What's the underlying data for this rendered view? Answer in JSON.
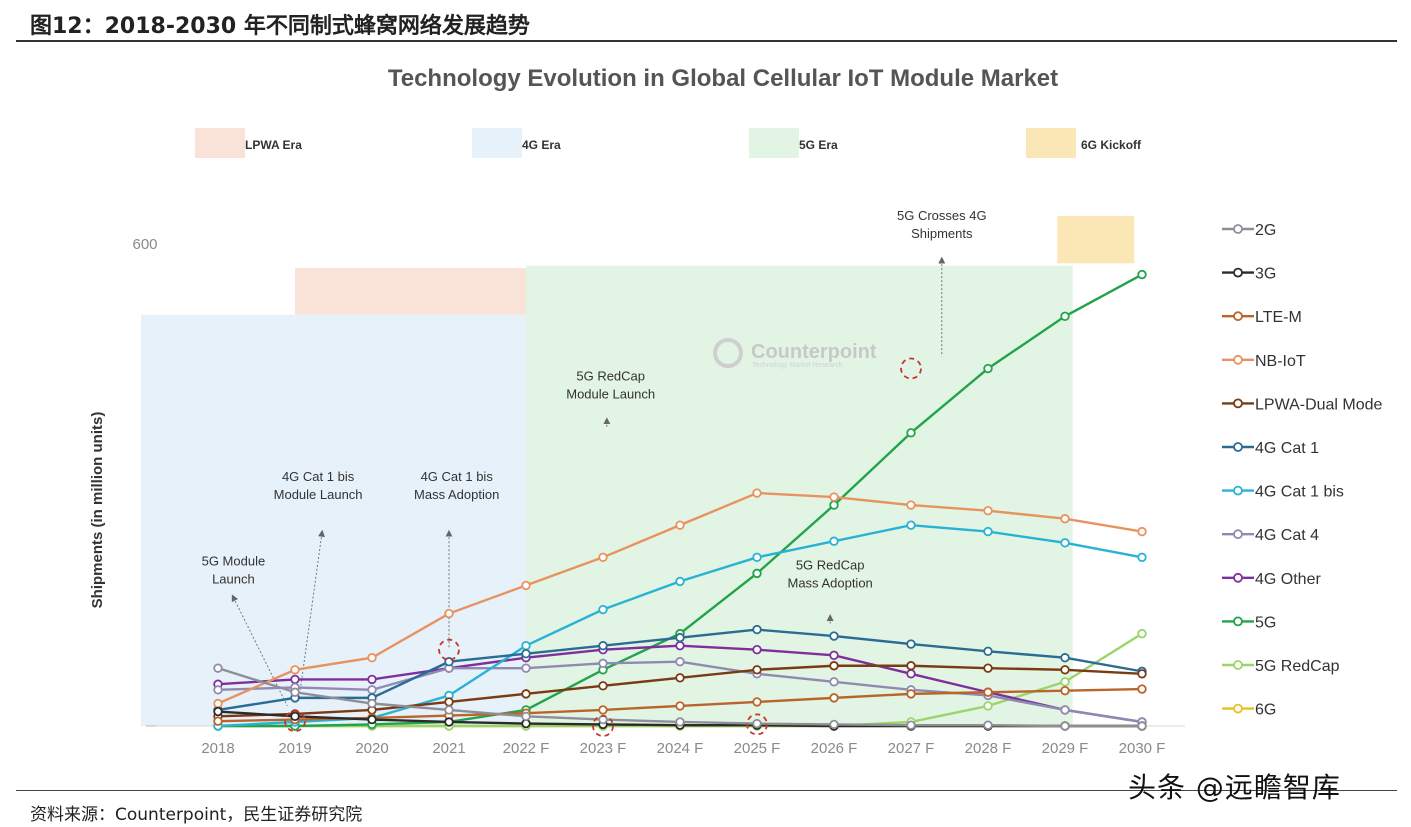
{
  "figure_caption": "图12：2018-2030 年不同制式蜂窝网络发展趋势",
  "source": "资料来源：Counterpoint，民生证券研究院",
  "watermark": "头条 @远瞻智库",
  "logo": {
    "name": "Counterpoint",
    "tagline": "Technology Market Research"
  },
  "chart_data": {
    "type": "line",
    "title": "Technology Evolution in Global Cellular IoT Module Market",
    "ylabel": "Shipments (in million units)",
    "xlabel": "",
    "ylim": [
      0,
      600
    ],
    "yticks": [
      "600"
    ],
    "categories": [
      "2018",
      "2019",
      "2020",
      "2021",
      "2022 F",
      "2023 F",
      "2024 F",
      "2025 F",
      "2026 F",
      "2027 F",
      "2028 F",
      "2029 F",
      "2030 F"
    ],
    "eras": [
      {
        "label": "LPWA Era",
        "color": "#f9e3d9"
      },
      {
        "label": "4G Era",
        "color": "#e6f1fa"
      },
      {
        "label": "5G Era",
        "color": "#e2f5e4"
      },
      {
        "label": "6G Kickoff",
        "color": "#fbe6b6"
      }
    ],
    "era_spans": [
      {
        "label": "LPWA Era",
        "from": 1,
        "to": 7.4,
        "low": 512,
        "high": 570
      },
      {
        "label": "4G Era",
        "from": -1,
        "to": 9.1,
        "low": 0,
        "high": 512
      },
      {
        "label": "5G Era",
        "from": 4,
        "to": 11.1,
        "low": 0,
        "high": 573
      },
      {
        "label": "6G Kickoff",
        "from": 10.9,
        "to": 11.9,
        "low": 576,
        "high": 635
      }
    ],
    "series": [
      {
        "name": "2G",
        "color": "#8e8e99",
        "values": [
          72,
          42,
          28,
          20,
          12,
          8,
          5,
          3,
          2,
          1,
          1,
          0,
          0
        ]
      },
      {
        "name": "3G",
        "color": "#2b2b2b",
        "values": [
          18,
          12,
          8,
          5,
          3,
          2,
          1,
          1,
          0,
          0,
          0,
          0,
          0
        ]
      },
      {
        "name": "LTE-M",
        "color": "#b9652a",
        "values": [
          6,
          8,
          10,
          13,
          16,
          20,
          25,
          30,
          35,
          40,
          42,
          44,
          46
        ]
      },
      {
        "name": "NB-IoT",
        "color": "#e8935f",
        "values": [
          28,
          70,
          85,
          140,
          175,
          210,
          250,
          290,
          285,
          275,
          268,
          258,
          242
        ]
      },
      {
        "name": "LPWA-Dual Mode",
        "color": "#7a3b14",
        "values": [
          12,
          15,
          20,
          30,
          40,
          50,
          60,
          70,
          75,
          75,
          72,
          70,
          65
        ]
      },
      {
        "name": "4G Cat 1",
        "color": "#2a6c93",
        "values": [
          20,
          35,
          35,
          80,
          90,
          100,
          110,
          120,
          112,
          102,
          93,
          85,
          68
        ]
      },
      {
        "name": "4G Cat 1 bis",
        "color": "#2ab2d6",
        "values": [
          0,
          5,
          10,
          38,
          100,
          145,
          180,
          210,
          230,
          250,
          242,
          228,
          210
        ]
      },
      {
        "name": "4G Cat 4",
        "color": "#9089b1",
        "values": [
          45,
          48,
          45,
          72,
          72,
          78,
          80,
          65,
          55,
          45,
          38,
          20,
          5
        ]
      },
      {
        "name": "4G Other",
        "color": "#7f2f9c",
        "values": [
          52,
          58,
          58,
          72,
          85,
          95,
          100,
          95,
          88,
          65,
          42,
          20,
          5
        ]
      },
      {
        "name": "5G",
        "color": "#23a34a",
        "values": [
          0,
          0,
          2,
          5,
          20,
          70,
          115,
          190,
          275,
          365,
          445,
          510,
          562
        ]
      },
      {
        "name": "5G RedCap",
        "color": "#9bd46c",
        "values": [
          0,
          0,
          0,
          0,
          0,
          0,
          0,
          0,
          0,
          5,
          25,
          55,
          115
        ]
      },
      {
        "name": "6G",
        "color": "#e5c020",
        "values": [
          0,
          0,
          0,
          0,
          0,
          0,
          0,
          0,
          0,
          0,
          0,
          0,
          0
        ]
      }
    ],
    "annotations": [
      {
        "lines": [
          "5G Module",
          "Launch"
        ],
        "x": 0.2,
        "y": 200,
        "arrow_from": [
          0.2,
          160
        ],
        "arrow_to": [
          0.9,
          25
        ]
      },
      {
        "lines": [
          "4G Cat 1 bis",
          "Module Launch"
        ],
        "x": 1.3,
        "y": 305,
        "arrow_from": [
          1.35,
          240
        ],
        "arrow_to": [
          1.05,
          32
        ]
      },
      {
        "lines": [
          "4G Cat 1 bis",
          "Mass Adoption"
        ],
        "x": 3.1,
        "y": 305,
        "arrow_from": [
          3.0,
          240
        ],
        "arrow_to": [
          3.0,
          98
        ]
      },
      {
        "lines": [
          "5G RedCap",
          "Module Launch"
        ],
        "x": 5.1,
        "y": 430,
        "arrow_from": [
          5.05,
          380
        ],
        "arrow_to": [
          5.05,
          370
        ]
      },
      {
        "lines": [
          "5G RedCap",
          "Mass Adoption"
        ],
        "x": 7.95,
        "y": 195,
        "arrow_from": [
          7.95,
          135
        ],
        "arrow_to": [
          7.95,
          125
        ]
      },
      {
        "lines": [
          "5G Crosses 4G",
          "Shipments"
        ],
        "x": 9.4,
        "y": 630,
        "arrow_from": [
          9.4,
          580
        ],
        "arrow_to": [
          9.4,
          460
        ]
      }
    ],
    "highlight_markers": [
      {
        "x": 1,
        "y": 6
      },
      {
        "x": 3,
        "y": 95
      },
      {
        "x": 5,
        "y": 0
      },
      {
        "x": 7,
        "y": 2
      },
      {
        "x": 9,
        "y": 445
      }
    ]
  }
}
